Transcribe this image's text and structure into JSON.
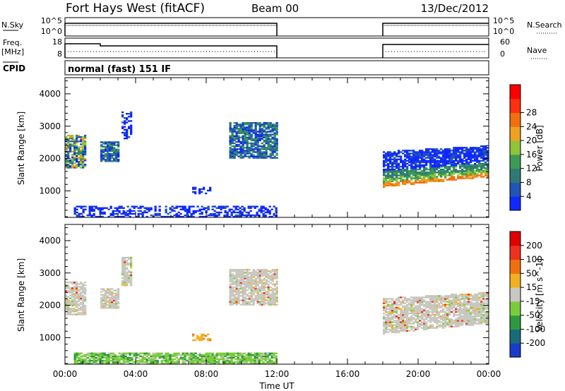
{
  "header": {
    "station": "Fort Hays West (fitACF)",
    "beam": "Beam 00",
    "date": "13/Dec/2012"
  },
  "strips": {
    "nsky_label": "N.Sky",
    "nsky_ticks": [
      "10^5",
      "10^0"
    ],
    "nsearch_label": "N.Search",
    "nsearch_ticks": [
      "10^5",
      "10^0"
    ],
    "freq_label": "Freq.",
    "freq_unit": "[MHz]",
    "freq_ticks": [
      "18",
      "8"
    ],
    "nave_label": "Nave",
    "nave_ticks": [
      "60",
      "0"
    ],
    "cpid_label": "CPID",
    "cpid_value": "normal (fast) 151 IF"
  },
  "chart_data": [
    {
      "type": "heatmap",
      "quantity": "Power",
      "ylabel": "Slant Range [km]",
      "y_ticks": [
        "1000",
        "2000",
        "3000",
        "4000"
      ],
      "x_ticks": [
        "00:00",
        "04:00",
        "08:00",
        "12:00",
        "16:00",
        "20:00",
        "00:00"
      ],
      "colorbar": {
        "label": "Power [dB]",
        "ticks": [
          "4",
          "8",
          "12",
          "16",
          "20",
          "24",
          "28"
        ],
        "colors": [
          "#1028ff",
          "#2255b5",
          "#2e7a72",
          "#3c9a55",
          "#8fc43a",
          "#f0a020",
          "#f07010",
          "#ff3010",
          "#ff0000"
        ]
      },
      "echo_regions": [
        {
          "t0": 0.0,
          "t1": 1.2,
          "r0": 1700,
          "r1": 2700,
          "level": "mixed-high"
        },
        {
          "t0": 2.0,
          "t1": 3.0,
          "r0": 1900,
          "r1": 2500,
          "level": "mixed"
        },
        {
          "t0": 3.2,
          "t1": 3.8,
          "r0": 2600,
          "r1": 3500,
          "level": "low"
        },
        {
          "t0": 7.2,
          "t1": 8.2,
          "r0": 900,
          "r1": 1100,
          "level": "low"
        },
        {
          "t0": 9.3,
          "t1": 12.0,
          "r0": 2000,
          "r1": 3100,
          "level": "mixed"
        },
        {
          "t0": 0.5,
          "t1": 12.0,
          "r0": 180,
          "r1": 500,
          "level": "low"
        },
        {
          "t0": 18.0,
          "t1": 24.0,
          "r0": 1100,
          "r1": 2400,
          "level": "strong-gradient"
        }
      ]
    },
    {
      "type": "heatmap",
      "quantity": "Velocity",
      "ylabel": "Slant Range [km]",
      "y_ticks": [
        "1000",
        "2000",
        "3000",
        "4000"
      ],
      "x_ticks": [
        "00:00",
        "04:00",
        "08:00",
        "12:00",
        "16:00",
        "20:00",
        "00:00"
      ],
      "xlabel": "Time UT",
      "colorbar": {
        "label": "Velocity [m s^-1]",
        "ticks": [
          "200",
          "100",
          "50",
          "15",
          "-15",
          "-50",
          "-100",
          "-200"
        ],
        "colors": [
          "#1a3cc8",
          "#1a6a7a",
          "#2e9a40",
          "#7ccc3a",
          "#c8c8c0",
          "#f0b020",
          "#f07010",
          "#f03020",
          "#e00000"
        ]
      },
      "echo_regions": [
        {
          "t0": 0.0,
          "t1": 1.2,
          "r0": 1700,
          "r1": 2700,
          "level": "grey"
        },
        {
          "t0": 2.0,
          "t1": 3.0,
          "r0": 1900,
          "r1": 2500,
          "level": "grey"
        },
        {
          "t0": 3.2,
          "t1": 3.8,
          "r0": 2600,
          "r1": 3500,
          "level": "grey"
        },
        {
          "t0": 7.2,
          "t1": 8.2,
          "r0": 900,
          "r1": 1100,
          "level": "orange"
        },
        {
          "t0": 9.3,
          "t1": 12.0,
          "r0": 2000,
          "r1": 3100,
          "level": "grey"
        },
        {
          "t0": 0.5,
          "t1": 12.0,
          "r0": 180,
          "r1": 500,
          "level": "green"
        },
        {
          "t0": 18.0,
          "t1": 24.0,
          "r0": 1100,
          "r1": 2400,
          "level": "grey"
        }
      ]
    }
  ],
  "x_range_hours": [
    0,
    24
  ],
  "y_range_km": [
    180,
    4500
  ],
  "gap_hours": [
    12,
    18
  ]
}
